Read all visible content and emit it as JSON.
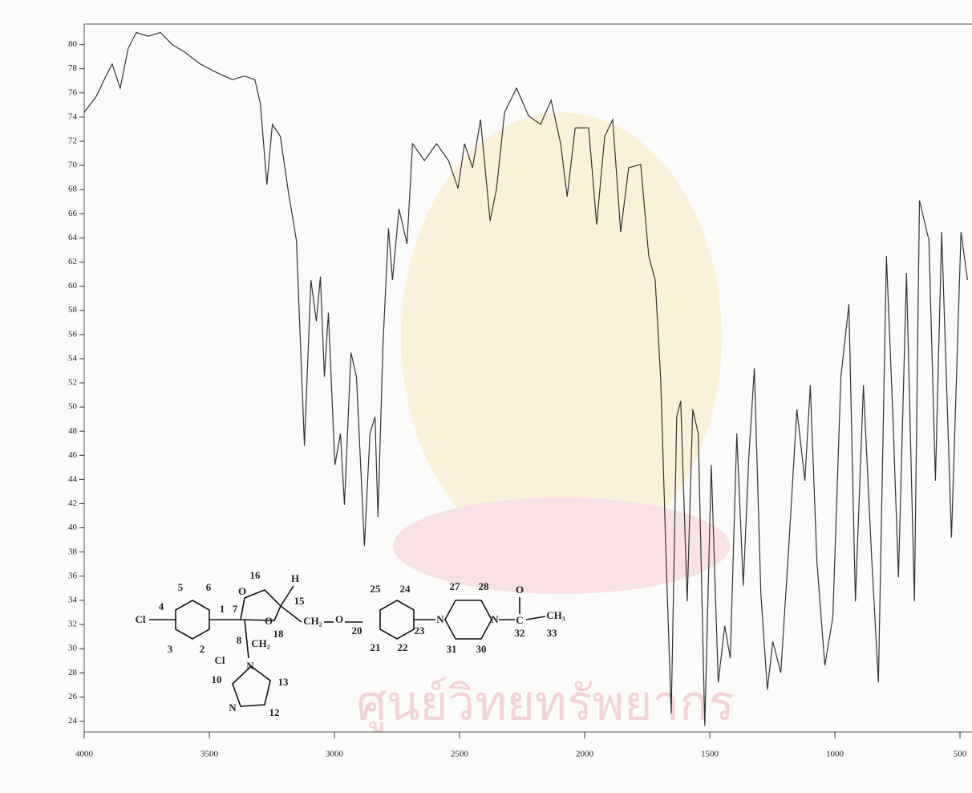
{
  "chart_data": {
    "type": "line",
    "watermark": "ศูนย์วิทยทรัพยากร",
    "x": [
      4000,
      3952,
      3920,
      3888,
      3856,
      3824,
      3792,
      3744,
      3696,
      3648,
      3600,
      3536,
      3472,
      3408,
      3360,
      3318,
      3296,
      3270,
      3248,
      3216,
      3184,
      3152,
      3120,
      3094,
      3072,
      3056,
      3040,
      3024,
      2998,
      2976,
      2960,
      2934,
      2912,
      2880,
      2858,
      2838,
      2826,
      2806,
      2784,
      2768,
      2742,
      2710,
      2688,
      2640,
      2592,
      2544,
      2506,
      2480,
      2448,
      2416,
      2378,
      2352,
      2320,
      2272,
      2224,
      2176,
      2134,
      2096,
      2070,
      2038,
      1984,
      1952,
      1920,
      1888,
      1856,
      1824,
      1776,
      1744,
      1718,
      1696,
      1674,
      1654,
      1632,
      1616,
      1590,
      1568,
      1546,
      1520,
      1494,
      1466,
      1440,
      1418,
      1392,
      1366,
      1344,
      1322,
      1296,
      1270,
      1248,
      1216,
      1184,
      1152,
      1120,
      1098,
      1072,
      1040,
      1008,
      976,
      944,
      918,
      886,
      854,
      826,
      794,
      768,
      746,
      714,
      682,
      662,
      624,
      598,
      573,
      534,
      496,
      470
    ],
    "values": [
      74.4,
      75.7,
      77.1,
      78.4,
      76.4,
      79.7,
      81,
      80.7,
      81,
      80,
      79.4,
      78.4,
      77.7,
      77.1,
      77.4,
      77.1,
      75.1,
      68.4,
      73.4,
      72.4,
      67.8,
      63.8,
      46.8,
      60.5,
      57.1,
      60.8,
      52.5,
      57.8,
      45.2,
      47.8,
      41.9,
      54.5,
      52.5,
      38.5,
      47.8,
      49.2,
      40.9,
      55.1,
      64.8,
      60.5,
      66.4,
      63.5,
      71.8,
      70.4,
      71.8,
      70.4,
      68.1,
      71.8,
      69.8,
      73.8,
      65.4,
      68.1,
      74.4,
      76.4,
      74.1,
      73.4,
      75.4,
      71.8,
      67.4,
      73.1,
      73.1,
      65.1,
      72.4,
      73.8,
      64.5,
      69.8,
      70.1,
      62.5,
      60.5,
      52.2,
      37.2,
      24.6,
      49.2,
      50.5,
      33.9,
      49.8,
      47.8,
      23.6,
      45.2,
      27.2,
      31.9,
      29.2,
      47.8,
      35.2,
      45.8,
      53.2,
      34.6,
      26.6,
      30.6,
      28,
      38.5,
      49.8,
      43.9,
      51.8,
      37.2,
      28.6,
      32.6,
      52.5,
      58.5,
      33.9,
      51.8,
      37.9,
      27.2,
      62.5,
      49.2,
      35.9,
      61.1,
      33.9,
      67.1,
      63.8,
      43.9,
      64.5,
      39.2,
      64.5,
      60.5
    ],
    "color": "#333333",
    "xlim": [
      4000,
      452
    ],
    "ylim": [
      23.1,
      81.7
    ],
    "xticks": [
      4000,
      3500,
      3000,
      2500,
      2000,
      1500,
      1000,
      500
    ],
    "yticks": [
      24,
      26,
      28,
      30,
      32,
      34,
      36,
      38,
      40,
      42,
      44,
      46,
      48,
      50,
      52,
      54,
      56,
      58,
      60,
      62,
      64,
      66,
      68,
      70,
      72,
      74,
      76,
      78,
      80
    ],
    "structure_labels": [
      "5",
      "6",
      "4",
      "Cl",
      "3",
      "2",
      "Cl",
      "1",
      "7",
      "16",
      "O",
      "O",
      "H",
      "15",
      "CH₂",
      "O",
      "18",
      "8",
      "CH₂",
      "N",
      "10",
      "13",
      "N",
      "12",
      "25",
      "24",
      "20",
      "23",
      "21",
      "22",
      "N",
      "27",
      "28",
      "N",
      "31",
      "30",
      "O",
      "C",
      "CH₃",
      "32",
      "33"
    ]
  }
}
